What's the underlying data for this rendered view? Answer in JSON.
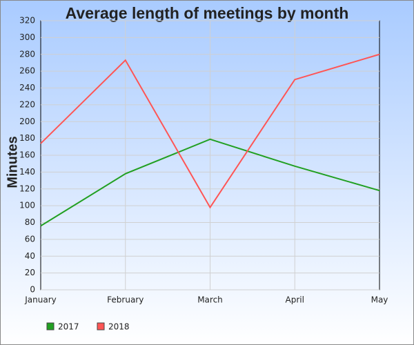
{
  "chart_data": {
    "type": "line",
    "title": "Average length of meetings by month",
    "y_label": "Minutes",
    "categories": [
      "January",
      "February",
      "March",
      "April",
      "May"
    ],
    "series": [
      {
        "name": "2017",
        "color": "#22a022",
        "values": [
          76,
          138,
          179,
          147,
          118
        ]
      },
      {
        "name": "2018",
        "color": "#ff5555",
        "values": [
          174,
          273,
          98,
          250,
          280
        ]
      }
    ],
    "ylim": [
      0,
      320
    ],
    "yticks": [
      0,
      20,
      40,
      60,
      80,
      100,
      120,
      140,
      160,
      180,
      200,
      220,
      240,
      260,
      280,
      300,
      320
    ],
    "grid": true
  }
}
